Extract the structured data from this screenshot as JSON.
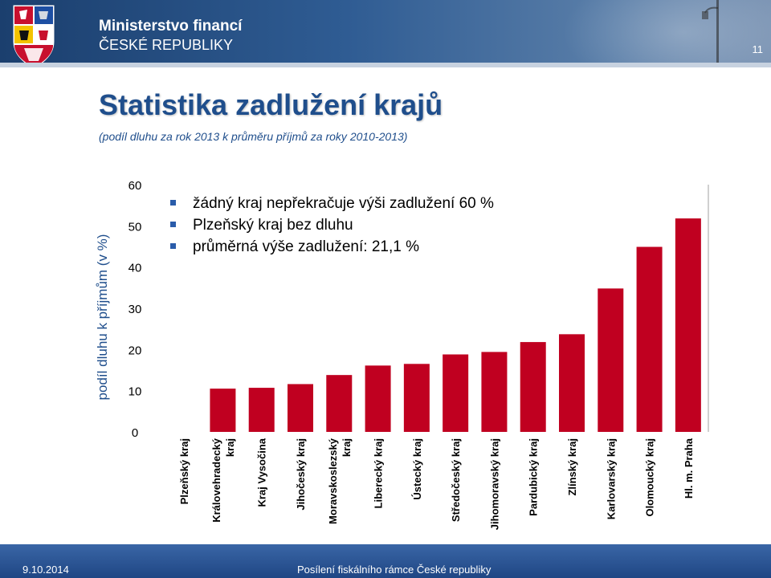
{
  "header": {
    "ministry_name": "Ministerstvo financí",
    "ministry_country": "ČESKÉ REPUBLIKY",
    "page_number": "11"
  },
  "slide": {
    "title": "Statistika zadlužení krajů",
    "subtitle": "(podíl dluhu za rok 2013 k průměru příjmů za roky 2010-2013)",
    "bullets": [
      "žádný kraj nepřekračuje výši zadlužení 60 %",
      "Plzeňský kraj bez dluhu",
      "průměrná výše zadlužení: 21,1 %"
    ]
  },
  "footer": {
    "date": "9.10.2014",
    "caption": "Posílení fiskálního rámce České republiky"
  },
  "colors": {
    "bar": "#c00020",
    "header_dark": "#1b3f6e",
    "title": "#1f4e8c"
  },
  "chart_data": {
    "type": "bar",
    "title": "",
    "xlabel": "",
    "ylabel": "podíl dluhu k příjmům (v %)",
    "ylim": [
      0,
      60
    ],
    "yticks": [
      0,
      10,
      20,
      30,
      40,
      50,
      60
    ],
    "grid": false,
    "categories": [
      [
        "Plzeňský kraj"
      ],
      [
        "Královehradecký",
        "kraj"
      ],
      [
        "Kraj Vysočina"
      ],
      [
        "Jihočeský kraj"
      ],
      [
        "Moravskoslezský",
        "kraj"
      ],
      [
        "Liberecký kraj"
      ],
      [
        "Ústecký kraj"
      ],
      [
        "Středočeský kraj"
      ],
      [
        "Jihomoravský kraj"
      ],
      [
        "Pardubický kraj"
      ],
      [
        "Zlínský kraj"
      ],
      [
        "Karlovarský kraj"
      ],
      [
        "Olomoucký kraj"
      ],
      [
        "Hl. m. Praha"
      ]
    ],
    "values": [
      0,
      10.5,
      10.7,
      11.6,
      13.8,
      16.1,
      16.5,
      18.8,
      19.4,
      21.8,
      23.7,
      34.8,
      44.9,
      51.8
    ]
  }
}
